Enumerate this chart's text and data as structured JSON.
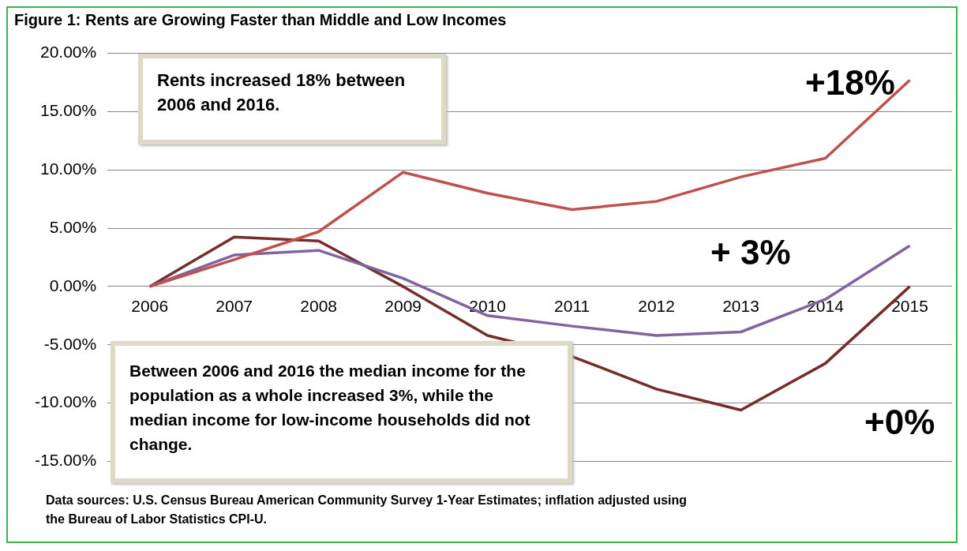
{
  "chart_data": {
    "type": "line",
    "title": "Figure 1: Rents are Growing Faster than Middle and Low Incomes",
    "categories": [
      "2006",
      "2007",
      "2008",
      "2009",
      "2010",
      "2011",
      "2012",
      "2013",
      "2014",
      "2015"
    ],
    "series": [
      {
        "color": "#c0504d",
        "values": [
          0,
          2.3,
          4.7,
          9.8,
          8.0,
          6.6,
          7.3,
          9.4,
          11.0,
          17.7
        ]
      },
      {
        "color": "#8064a2",
        "values": [
          0,
          2.7,
          3.1,
          0.7,
          -2.5,
          -3.4,
          -4.2,
          -3.9,
          -1.1,
          3.5
        ]
      },
      {
        "color": "#772c2a",
        "values": [
          0,
          4.25,
          3.9,
          0,
          -4.2,
          -6.0,
          -8.8,
          -10.6,
          -6.6,
          0
        ]
      }
    ],
    "ylim": [
      -15,
      20
    ],
    "yticks": [
      {
        "value": -15,
        "label": "-15.00%"
      },
      {
        "value": -10,
        "label": "-10.00%"
      },
      {
        "value": -5,
        "label": "-5.00%"
      },
      {
        "value": 0,
        "label": "0.00%"
      },
      {
        "value": 5,
        "label": "5.00%"
      },
      {
        "value": 10,
        "label": "10.00%"
      },
      {
        "value": 15,
        "label": "15.00%"
      },
      {
        "value": 20,
        "label": "20.00%"
      }
    ],
    "grid": "y",
    "legend": false,
    "marker": "none",
    "line_style": "solid",
    "annotations": [
      "Rents increased 18% between 2006 and 2016.",
      "Between 2006 and 2016 the median income for the population as a whole increased 3%, while the median income for low-income households did not change.",
      "Data sources: U.S. Census Bureau American Community Survey 1-Year Estimates; inflation adjusted using the Bureau of Labor Statistics CPI-U.",
      "+18%",
      "+ 3%",
      "+0%"
    ]
  }
}
